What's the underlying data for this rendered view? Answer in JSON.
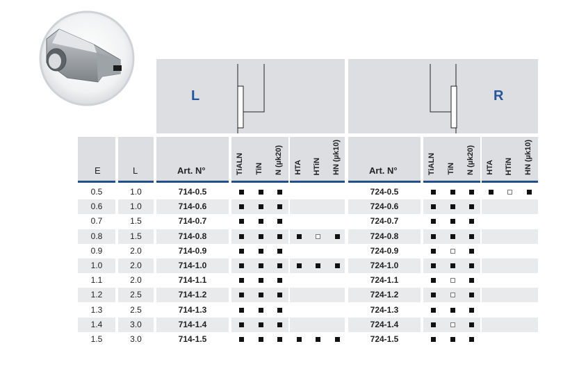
{
  "panels": {
    "left_label": "L",
    "right_label": "R"
  },
  "headers": {
    "e": "E",
    "l": "L",
    "art_left": "Art. N°",
    "art_right": "Art. N°",
    "coatings": [
      "TiALN",
      "TiN",
      "N (µk20)",
      "HTA",
      "HTiN",
      "HN (µk10)"
    ]
  },
  "rows": [
    {
      "e": "0.5",
      "l": "1.0",
      "art_l": "714-0.5",
      "left": [
        "f",
        "f",
        "f",
        "",
        "",
        ""
      ],
      "art_r": "724-0.5",
      "right": [
        "f",
        "f",
        "f",
        "f",
        "o",
        "f"
      ]
    },
    {
      "e": "0.6",
      "l": "1.0",
      "art_l": "714-0.6",
      "left": [
        "f",
        "f",
        "f",
        "",
        "",
        ""
      ],
      "art_r": "724-0.6",
      "right": [
        "f",
        "f",
        "f",
        "",
        "",
        ""
      ]
    },
    {
      "e": "0.7",
      "l": "1.5",
      "art_l": "714-0.7",
      "left": [
        "f",
        "f",
        "f",
        "",
        "",
        ""
      ],
      "art_r": "724-0.7",
      "right": [
        "f",
        "f",
        "f",
        "",
        "",
        ""
      ]
    },
    {
      "e": "0.8",
      "l": "1.5",
      "art_l": "714-0.8",
      "left": [
        "f",
        "f",
        "f",
        "f",
        "o",
        "f"
      ],
      "art_r": "724-0.8",
      "right": [
        "f",
        "f",
        "f",
        "",
        "",
        ""
      ]
    },
    {
      "e": "0.9",
      "l": "2.0",
      "art_l": "714-0.9",
      "left": [
        "f",
        "f",
        "f",
        "",
        "",
        ""
      ],
      "art_r": "724-0.9",
      "right": [
        "f",
        "o",
        "f",
        "",
        "",
        ""
      ]
    },
    {
      "e": "1.0",
      "l": "2.0",
      "art_l": "714-1.0",
      "left": [
        "f",
        "f",
        "f",
        "f",
        "f",
        "f"
      ],
      "art_r": "724-1.0",
      "right": [
        "f",
        "f",
        "f",
        "",
        "",
        ""
      ]
    },
    {
      "e": "1.1",
      "l": "2.0",
      "art_l": "714-1.1",
      "left": [
        "f",
        "f",
        "f",
        "",
        "",
        ""
      ],
      "art_r": "724-1.1",
      "right": [
        "f",
        "o",
        "f",
        "",
        "",
        ""
      ]
    },
    {
      "e": "1.2",
      "l": "2.5",
      "art_l": "714-1.2",
      "left": [
        "f",
        "f",
        "f",
        "",
        "",
        ""
      ],
      "art_r": "724-1.2",
      "right": [
        "f",
        "o",
        "f",
        "",
        "",
        ""
      ]
    },
    {
      "e": "1.3",
      "l": "2.5",
      "art_l": "714-1.3",
      "left": [
        "f",
        "f",
        "f",
        "",
        "",
        ""
      ],
      "art_r": "724-1.3",
      "right": [
        "f",
        "f",
        "f",
        "",
        "",
        ""
      ]
    },
    {
      "e": "1.4",
      "l": "3.0",
      "art_l": "714-1.4",
      "left": [
        "f",
        "f",
        "f",
        "",
        "",
        ""
      ],
      "art_r": "724-1.4",
      "right": [
        "f",
        "o",
        "f",
        "",
        "",
        ""
      ]
    },
    {
      "e": "1.5",
      "l": "3.0",
      "art_l": "714-1.5",
      "left": [
        "f",
        "f",
        "f",
        "f",
        "f",
        "f"
      ],
      "art_r": "724-1.5",
      "right": [
        "f",
        "f",
        "f",
        "",
        "",
        ""
      ]
    }
  ],
  "colors": {
    "accent": "#1f4f8f",
    "header_bg": "#dcdee2",
    "row_shade": "#e9eaec"
  }
}
